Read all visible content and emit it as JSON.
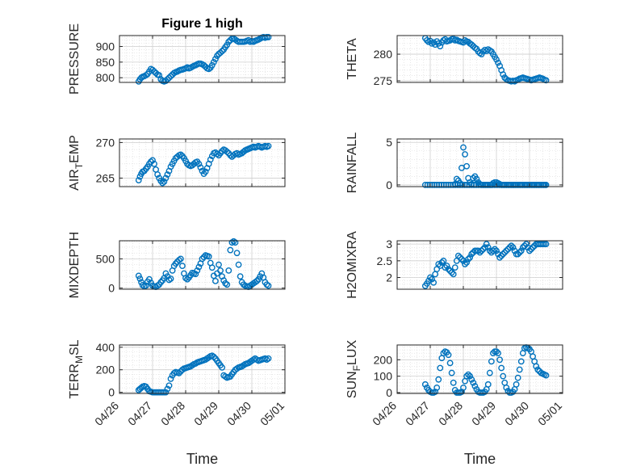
{
  "figure": {
    "title": "Figure 1 high",
    "x_ticks": [
      "04/26",
      "04/27",
      "04/28",
      "04/29",
      "04/30",
      "05/01"
    ]
  },
  "colors": {
    "marker": "#0072BD",
    "axis": "#262626",
    "grid": "#d9d9d9"
  },
  "chart_data": [
    {
      "type": "scatter",
      "title": "Figure 1 high",
      "ylabel": "PRESSURE",
      "ylim": [
        785,
        935
      ],
      "yticks": [
        800,
        850,
        900
      ],
      "xlim": [
        0,
        5
      ],
      "x": [
        0.58,
        0.62,
        0.66,
        0.7,
        0.75,
        0.8,
        0.85,
        0.9,
        0.95,
        1.0,
        1.05,
        1.1,
        1.15,
        1.2,
        1.25,
        1.3,
        1.35,
        1.4,
        1.45,
        1.5,
        1.55,
        1.6,
        1.65,
        1.7,
        1.75,
        1.8,
        1.85,
        1.9,
        1.95,
        2.0,
        2.05,
        2.1,
        2.15,
        2.2,
        2.25,
        2.3,
        2.35,
        2.4,
        2.45,
        2.5,
        2.55,
        2.6,
        2.65,
        2.7,
        2.75,
        2.8,
        2.85,
        2.9,
        2.95,
        3.0,
        3.05,
        3.1,
        3.15,
        3.2,
        3.25,
        3.3,
        3.35,
        3.4,
        3.45,
        3.5,
        3.55,
        3.6,
        3.65,
        3.7,
        3.75,
        3.8,
        3.85,
        3.9,
        3.95,
        4.0,
        4.05,
        4.1,
        4.15,
        4.2,
        4.25,
        4.3,
        4.35,
        4.4,
        4.45,
        4.5
      ],
      "y": [
        788,
        795,
        800,
        803,
        805,
        808,
        812,
        820,
        828,
        825,
        820,
        815,
        810,
        808,
        795,
        790,
        788,
        790,
        795,
        800,
        805,
        810,
        815,
        818,
        820,
        823,
        825,
        826,
        828,
        830,
        833,
        830,
        832,
        835,
        838,
        840,
        843,
        845,
        845,
        843,
        840,
        835,
        830,
        828,
        832,
        840,
        850,
        860,
        870,
        876,
        880,
        885,
        890,
        898,
        905,
        915,
        920,
        925,
        925,
        922,
        918,
        915,
        915,
        915,
        915,
        916,
        918,
        920,
        915,
        917,
        915,
        918,
        920,
        922,
        925,
        928,
        930,
        928,
        930,
        930
      ]
    },
    {
      "type": "scatter",
      "ylabel": "THETA",
      "ylim": [
        274.7,
        283.5
      ],
      "yticks": [
        275,
        280
      ],
      "xlim": [
        0,
        5
      ],
      "x": [
        0.85,
        0.9,
        0.95,
        1.0,
        1.05,
        1.1,
        1.15,
        1.2,
        1.25,
        1.3,
        1.35,
        1.4,
        1.45,
        1.5,
        1.55,
        1.6,
        1.65,
        1.7,
        1.75,
        1.8,
        1.85,
        1.9,
        1.95,
        2.0,
        2.05,
        2.1,
        2.15,
        2.2,
        2.25,
        2.3,
        2.35,
        2.4,
        2.45,
        2.5,
        2.55,
        2.6,
        2.65,
        2.7,
        2.75,
        2.8,
        2.85,
        2.9,
        2.95,
        3.0,
        3.05,
        3.1,
        3.15,
        3.2,
        3.25,
        3.3,
        3.35,
        3.4,
        3.45,
        3.5,
        3.55,
        3.6,
        3.65,
        3.7,
        3.75,
        3.8,
        3.85,
        3.9,
        3.95,
        4.0,
        4.05,
        4.1,
        4.15,
        4.2,
        4.25,
        4.3,
        4.35,
        4.4,
        4.45,
        4.5
      ],
      "y": [
        283.0,
        282.6,
        282.3,
        282.5,
        282.0,
        282.2,
        281.8,
        282.4,
        282.0,
        281.5,
        282.2,
        282.6,
        282.8,
        282.4,
        282.5,
        282.6,
        282.8,
        282.9,
        282.6,
        282.7,
        282.5,
        282.4,
        282.3,
        282.2,
        282.6,
        282.4,
        282.3,
        282.0,
        281.8,
        281.5,
        281.2,
        281.0,
        280.5,
        280.2,
        280.0,
        280.5,
        280.8,
        280.6,
        280.9,
        280.7,
        280.5,
        280.0,
        279.5,
        279.0,
        278.4,
        277.8,
        277.0,
        276.2,
        275.6,
        275.3,
        275.1,
        275.0,
        274.9,
        275.0,
        274.9,
        275.1,
        275.2,
        275.4,
        275.5,
        275.6,
        275.5,
        275.4,
        275.3,
        275.2,
        275.1,
        275.2,
        275.3,
        275.4,
        275.5,
        275.6,
        275.5,
        275.4,
        275.2,
        275.1
      ]
    },
    {
      "type": "scatter",
      "ylabel": "AIR_TEMP",
      "ylim": [
        263.8,
        270.5
      ],
      "yticks": [
        265,
        270
      ],
      "xlim": [
        0,
        5
      ],
      "x": [
        0.58,
        0.62,
        0.66,
        0.7,
        0.75,
        0.8,
        0.85,
        0.9,
        0.95,
        1.0,
        1.05,
        1.1,
        1.15,
        1.2,
        1.25,
        1.3,
        1.35,
        1.4,
        1.45,
        1.5,
        1.55,
        1.6,
        1.65,
        1.7,
        1.75,
        1.8,
        1.85,
        1.9,
        1.95,
        2.0,
        2.05,
        2.1,
        2.15,
        2.2,
        2.25,
        2.3,
        2.35,
        2.4,
        2.45,
        2.5,
        2.55,
        2.6,
        2.65,
        2.7,
        2.75,
        2.8,
        2.85,
        2.9,
        2.95,
        3.0,
        3.05,
        3.1,
        3.15,
        3.2,
        3.25,
        3.3,
        3.35,
        3.4,
        3.45,
        3.5,
        3.55,
        3.6,
        3.65,
        3.7,
        3.75,
        3.8,
        3.85,
        3.9,
        3.95,
        4.0,
        4.05,
        4.1,
        4.15,
        4.2,
        4.25,
        4.3,
        4.35,
        4.4,
        4.45,
        4.5
      ],
      "y": [
        264.7,
        265.2,
        265.6,
        265.9,
        266.0,
        266.3,
        266.6,
        267.0,
        267.3,
        267.5,
        267.0,
        266.2,
        265.5,
        265.0,
        264.6,
        264.3,
        264.5,
        265.0,
        265.5,
        266.0,
        266.6,
        267.0,
        267.4,
        267.8,
        268.0,
        268.2,
        268.3,
        268.1,
        267.8,
        267.4,
        267.0,
        266.8,
        266.7,
        266.8,
        267.0,
        267.2,
        267.3,
        267.0,
        266.5,
        266.0,
        265.6,
        265.9,
        266.4,
        267.0,
        267.6,
        268.1,
        268.5,
        268.6,
        268.4,
        268.2,
        268.5,
        268.8,
        269.0,
        268.9,
        268.7,
        268.5,
        268.2,
        268.0,
        268.2,
        268.4,
        268.5,
        268.3,
        268.4,
        268.5,
        268.7,
        268.9,
        269.0,
        269.1,
        269.2,
        269.3,
        269.4,
        269.3,
        269.4,
        269.5,
        269.4,
        269.3,
        269.4,
        269.5,
        269.4,
        269.5
      ]
    },
    {
      "type": "scatter",
      "ylabel": "RAINFALL",
      "ylim": [
        -0.2,
        5.4
      ],
      "yticks": [
        0,
        5
      ],
      "xlim": [
        0,
        5
      ],
      "x": [
        0.85,
        0.92,
        0.99,
        1.06,
        1.13,
        1.2,
        1.27,
        1.34,
        1.41,
        1.48,
        1.55,
        1.62,
        1.69,
        1.76,
        1.83,
        1.9,
        1.97,
        2.04,
        2.11,
        2.18,
        2.25,
        2.32,
        2.39,
        2.46,
        2.53,
        2.6,
        2.67,
        2.74,
        2.81,
        2.88,
        2.95,
        3.02,
        3.09,
        3.16,
        3.23,
        3.3,
        3.37,
        3.44,
        3.51,
        3.58,
        3.65,
        3.72,
        3.79,
        3.86,
        3.93,
        4.0,
        4.07,
        4.14,
        4.21,
        4.28,
        4.35,
        4.42,
        4.49,
        1.75,
        1.8,
        1.85,
        1.9,
        1.95,
        2.0,
        2.05,
        2.1,
        2.15,
        2.2,
        2.25,
        2.3,
        2.35,
        2.4,
        2.45,
        2.5,
        2.55,
        2.6,
        2.65,
        2.7,
        2.75,
        2.8,
        2.85,
        2.9,
        2.95,
        3.0,
        3.05,
        3.1,
        3.15,
        3.2,
        3.25,
        3.3,
        3.35,
        3.4,
        3.45,
        3.5,
        3.55,
        3.6,
        3.65,
        3.7,
        3.75,
        3.8,
        3.85,
        3.9,
        3.95,
        4.0,
        4.05,
        4.1,
        4.15,
        4.2,
        4.25,
        4.3,
        4.35,
        4.4,
        4.45,
        4.5
      ],
      "y": [
        0,
        0,
        0,
        0,
        0,
        0,
        0,
        0,
        0,
        0,
        0,
        0,
        0,
        0,
        0,
        0,
        0,
        0,
        0,
        0,
        0,
        0,
        0,
        0,
        0,
        0,
        0,
        0,
        0,
        0,
        0,
        0,
        0,
        0,
        0,
        0,
        0,
        0,
        0,
        0,
        0,
        0,
        0,
        0,
        0,
        0,
        0,
        0,
        0,
        0,
        0,
        0,
        0,
        0.1,
        0.7,
        0.5,
        0.2,
        2.0,
        4.4,
        3.6,
        2.2,
        0.8,
        0.3,
        0.1,
        0.8,
        1.0,
        0.7,
        0.3,
        0.1,
        0,
        0,
        0,
        0,
        0,
        0,
        0,
        0.2,
        0.3,
        0.3,
        0.2,
        0.1,
        0,
        0,
        0,
        0,
        0,
        0,
        0,
        0,
        0,
        0,
        0,
        0,
        0,
        0,
        0,
        0,
        0,
        0,
        0,
        0,
        0,
        0,
        0,
        0,
        0,
        0,
        0,
        0
      ]
    },
    {
      "type": "scatter",
      "ylabel": "MIXDEPTH",
      "ylim": [
        -20,
        810
      ],
      "yticks": [
        0,
        500
      ],
      "xlim": [
        0,
        5
      ],
      "x": [
        0.58,
        0.62,
        0.66,
        0.7,
        0.75,
        0.8,
        0.85,
        0.9,
        0.95,
        1.0,
        1.05,
        1.1,
        1.15,
        1.2,
        1.25,
        1.3,
        1.35,
        1.4,
        1.45,
        1.5,
        1.55,
        1.6,
        1.65,
        1.7,
        1.75,
        1.8,
        1.85,
        1.9,
        1.95,
        2.0,
        2.05,
        2.1,
        2.15,
        2.2,
        2.25,
        2.3,
        2.35,
        2.4,
        2.45,
        2.5,
        2.55,
        2.6,
        2.65,
        2.7,
        2.75,
        2.8,
        2.85,
        2.9,
        2.95,
        3.0,
        3.05,
        3.1,
        3.15,
        3.2,
        3.25,
        3.3,
        3.35,
        3.4,
        3.45,
        3.5,
        3.55,
        3.6,
        3.65,
        3.7,
        3.75,
        3.8,
        3.85,
        3.9,
        3.95,
        4.0,
        4.05,
        4.1,
        4.15,
        4.2,
        4.25,
        4.3,
        4.35,
        4.4,
        4.45,
        4.5
      ],
      "y": [
        210,
        160,
        100,
        50,
        30,
        40,
        110,
        150,
        90,
        40,
        30,
        20,
        40,
        60,
        100,
        130,
        170,
        250,
        200,
        140,
        160,
        300,
        380,
        420,
        450,
        480,
        500,
        380,
        250,
        170,
        150,
        180,
        220,
        260,
        250,
        240,
        300,
        360,
        420,
        500,
        530,
        560,
        550,
        540,
        430,
        350,
        210,
        120,
        250,
        400,
        300,
        200,
        130,
        80,
        60,
        300,
        650,
        780,
        800,
        780,
        600,
        400,
        200,
        100,
        60,
        40,
        30,
        20,
        40,
        60,
        80,
        100,
        120,
        150,
        200,
        250,
        180,
        100,
        60,
        40
      ]
    },
    {
      "type": "scatter",
      "ylabel": "H2OMIXRA",
      "ylim": [
        1.65,
        3.1
      ],
      "yticks": [
        2,
        2.5,
        3
      ],
      "xlim": [
        0,
        5
      ],
      "x": [
        0.85,
        0.9,
        0.95,
        1.0,
        1.05,
        1.1,
        1.15,
        1.2,
        1.25,
        1.3,
        1.35,
        1.4,
        1.45,
        1.5,
        1.55,
        1.6,
        1.65,
        1.7,
        1.75,
        1.8,
        1.85,
        1.9,
        1.95,
        2.0,
        2.05,
        2.1,
        2.15,
        2.2,
        2.25,
        2.3,
        2.35,
        2.4,
        2.45,
        2.5,
        2.55,
        2.6,
        2.65,
        2.7,
        2.75,
        2.8,
        2.85,
        2.9,
        2.95,
        3.0,
        3.05,
        3.1,
        3.15,
        3.2,
        3.25,
        3.3,
        3.35,
        3.4,
        3.45,
        3.5,
        3.55,
        3.6,
        3.65,
        3.7,
        3.75,
        3.8,
        3.85,
        3.9,
        3.95,
        4.0,
        4.05,
        4.1,
        4.15,
        4.2,
        4.25,
        4.3,
        4.35,
        4.4,
        4.45,
        4.5
      ],
      "y": [
        1.75,
        1.82,
        1.9,
        2.0,
        1.95,
        1.85,
        2.1,
        2.25,
        2.4,
        2.35,
        2.45,
        2.5,
        2.3,
        2.35,
        2.25,
        2.2,
        2.15,
        2.1,
        2.3,
        2.5,
        2.65,
        2.6,
        2.55,
        2.5,
        2.4,
        2.45,
        2.55,
        2.6,
        2.7,
        2.75,
        2.8,
        2.8,
        2.8,
        2.75,
        2.8,
        2.85,
        2.9,
        3.0,
        2.9,
        2.8,
        2.75,
        2.8,
        2.85,
        2.8,
        2.7,
        2.6,
        2.65,
        2.7,
        2.75,
        2.8,
        2.85,
        2.9,
        2.95,
        2.9,
        2.8,
        2.7,
        2.7,
        2.75,
        2.8,
        2.9,
        2.95,
        3.0,
        2.9,
        2.8,
        2.85,
        2.9,
        2.95,
        3.0,
        3.0,
        3.0,
        3.0,
        3.0,
        3.0,
        3.0
      ]
    },
    {
      "type": "scatter",
      "ylabel": "TERR_MSL",
      "ylim": [
        -10,
        420
      ],
      "yticks": [
        0,
        200,
        400
      ],
      "xlim": [
        0,
        5
      ],
      "x": [
        0.58,
        0.62,
        0.66,
        0.7,
        0.75,
        0.8,
        0.85,
        0.9,
        0.95,
        1.0,
        1.05,
        1.1,
        1.15,
        1.2,
        1.25,
        1.3,
        1.35,
        1.4,
        1.45,
        1.5,
        1.55,
        1.6,
        1.65,
        1.7,
        1.75,
        1.8,
        1.85,
        1.9,
        1.95,
        2.0,
        2.05,
        2.1,
        2.15,
        2.2,
        2.25,
        2.3,
        2.35,
        2.4,
        2.45,
        2.5,
        2.55,
        2.6,
        2.65,
        2.7,
        2.75,
        2.8,
        2.85,
        2.9,
        2.95,
        3.0,
        3.05,
        3.1,
        3.15,
        3.2,
        3.25,
        3.3,
        3.35,
        3.4,
        3.45,
        3.5,
        3.55,
        3.6,
        3.65,
        3.7,
        3.75,
        3.8,
        3.85,
        3.9,
        3.95,
        4.0,
        4.05,
        4.1,
        4.15,
        4.2,
        4.25,
        4.3,
        4.35,
        4.4,
        4.45,
        4.5
      ],
      "y": [
        20,
        30,
        40,
        50,
        55,
        50,
        30,
        10,
        5,
        0,
        0,
        0,
        0,
        0,
        0,
        0,
        0,
        0,
        30,
        60,
        120,
        150,
        170,
        180,
        175,
        170,
        185,
        200,
        210,
        215,
        220,
        225,
        230,
        240,
        250,
        255,
        265,
        270,
        275,
        280,
        285,
        290,
        300,
        310,
        320,
        325,
        315,
        300,
        280,
        260,
        240,
        220,
        150,
        140,
        130,
        135,
        140,
        160,
        180,
        200,
        210,
        220,
        225,
        230,
        240,
        250,
        255,
        260,
        270,
        280,
        290,
        300,
        290,
        280,
        285,
        290,
        295,
        300,
        290,
        300
      ]
    },
    {
      "type": "scatter",
      "ylabel": "SUN_FLUX",
      "ylim": [
        -5,
        290
      ],
      "yticks": [
        0,
        100,
        200
      ],
      "xlim": [
        0,
        5
      ],
      "x": [
        0.85,
        0.9,
        0.95,
        1.0,
        1.05,
        1.1,
        1.15,
        1.2,
        1.25,
        1.3,
        1.35,
        1.4,
        1.45,
        1.5,
        1.55,
        1.6,
        1.65,
        1.7,
        1.75,
        1.8,
        1.85,
        1.9,
        1.95,
        2.0,
        2.05,
        2.1,
        2.15,
        2.2,
        2.25,
        2.3,
        2.35,
        2.4,
        2.45,
        2.5,
        2.55,
        2.6,
        2.65,
        2.7,
        2.75,
        2.8,
        2.85,
        2.9,
        2.95,
        3.0,
        3.05,
        3.1,
        3.15,
        3.2,
        3.25,
        3.3,
        3.35,
        3.4,
        3.45,
        3.5,
        3.55,
        3.6,
        3.65,
        3.7,
        3.75,
        3.8,
        3.85,
        3.9,
        3.95,
        4.0,
        4.05,
        4.1,
        4.15,
        4.2,
        4.25,
        4.3,
        4.35,
        4.4,
        4.45,
        4.5
      ],
      "y": [
        50,
        30,
        15,
        5,
        0,
        0,
        5,
        30,
        80,
        150,
        210,
        240,
        250,
        245,
        230,
        180,
        120,
        60,
        15,
        0,
        0,
        0,
        5,
        30,
        70,
        100,
        110,
        100,
        80,
        60,
        40,
        20,
        5,
        0,
        0,
        0,
        5,
        20,
        50,
        120,
        190,
        240,
        250,
        250,
        240,
        200,
        150,
        100,
        60,
        30,
        10,
        0,
        0,
        5,
        20,
        50,
        90,
        140,
        190,
        240,
        270,
        275,
        270,
        265,
        250,
        220,
        190,
        160,
        140,
        130,
        120,
        115,
        110,
        105
      ]
    }
  ]
}
